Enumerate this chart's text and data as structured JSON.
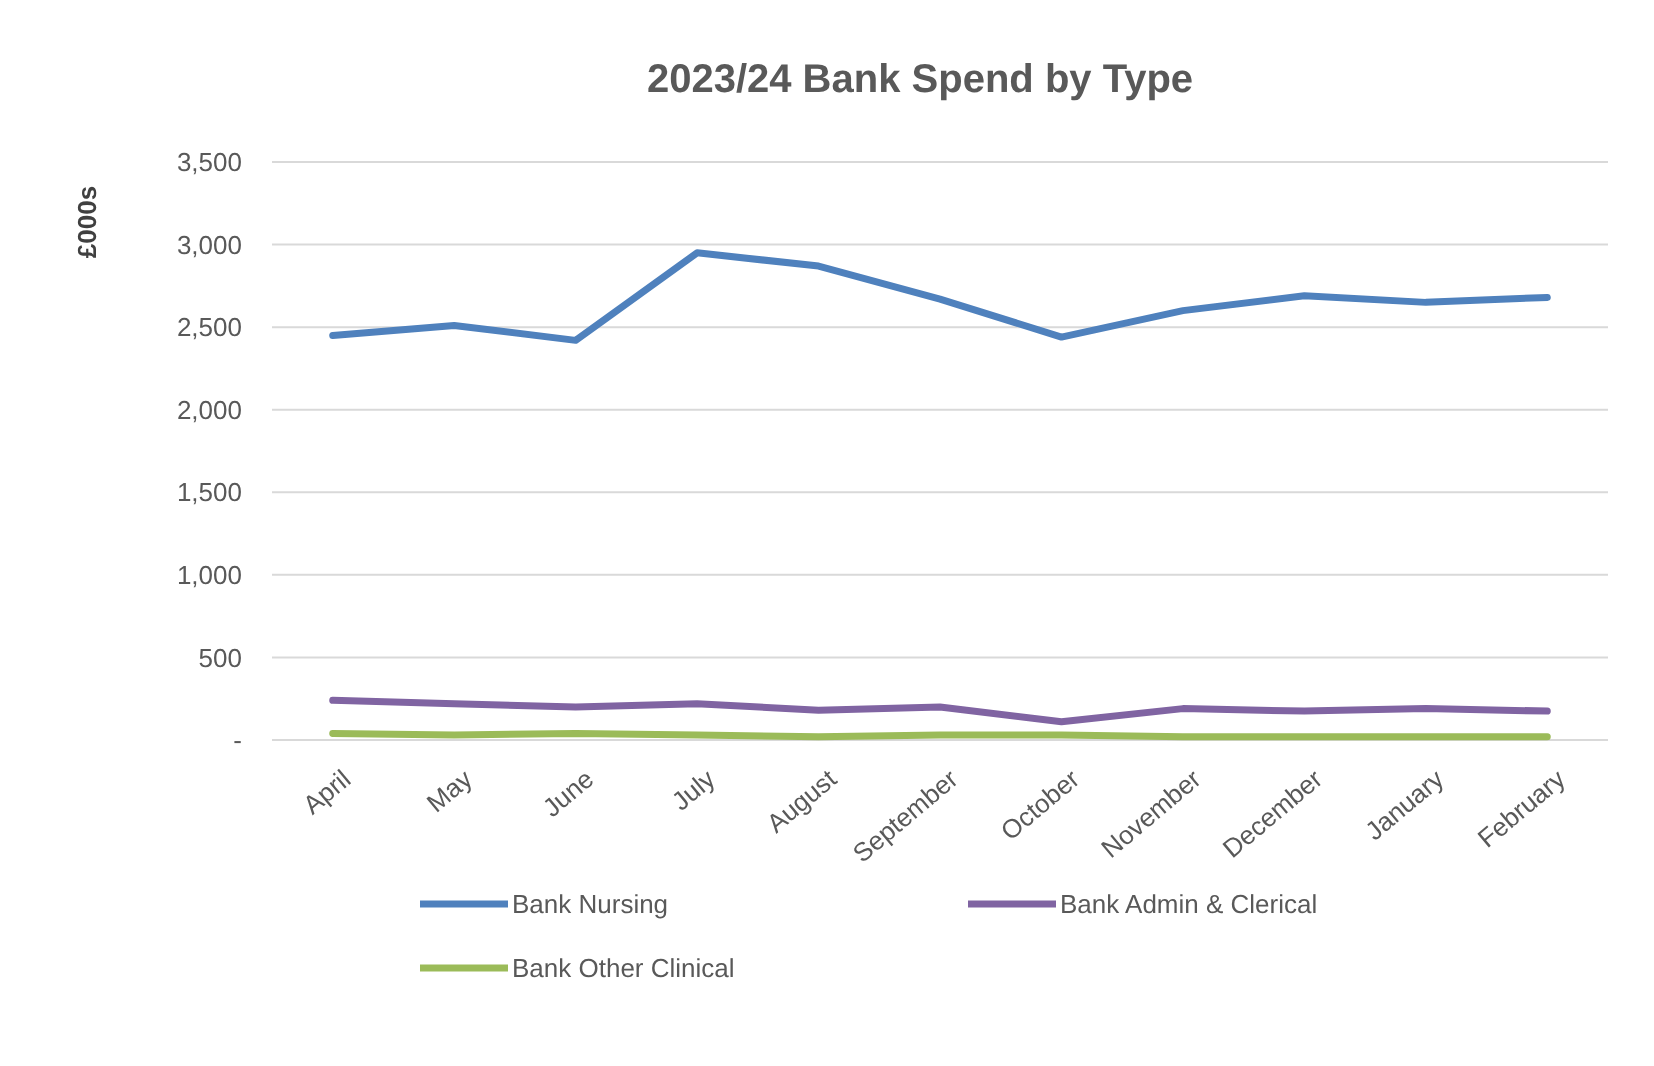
{
  "chart_data": {
    "type": "line",
    "title": "2023/24 Bank Spend by Type",
    "ylabel": "£000s",
    "categories": [
      "April",
      "May",
      "June",
      "July",
      "August",
      "September",
      "October",
      "November",
      "December",
      "January",
      "February"
    ],
    "series": [
      {
        "name": "Bank Nursing",
        "color": "#4f81bd",
        "values": [
          2450,
          2510,
          2420,
          2950,
          2870,
          2670,
          2440,
          2600,
          2690,
          2650,
          2680
        ]
      },
      {
        "name": "Bank Admin & Clerical",
        "color": "#8064a2",
        "values": [
          240,
          220,
          200,
          220,
          180,
          200,
          110,
          190,
          175,
          190,
          175
        ]
      },
      {
        "name": "Bank Other Clinical",
        "color": "#9bbb59",
        "values": [
          40,
          30,
          40,
          30,
          20,
          30,
          30,
          20,
          20,
          20,
          20
        ]
      }
    ],
    "ylim": [
      0,
      3500
    ],
    "yticks": [
      {
        "value": 0,
        "label": "-"
      },
      {
        "value": 500,
        "label": "500"
      },
      {
        "value": 1000,
        "label": "1,000"
      },
      {
        "value": 1500,
        "label": "1,500"
      },
      {
        "value": 2000,
        "label": "2,000"
      },
      {
        "value": 2500,
        "label": "2,500"
      },
      {
        "value": 3000,
        "label": "3,000"
      },
      {
        "value": 3500,
        "label": "3,500"
      }
    ],
    "grid": "y",
    "legend": "bottom",
    "marker": "none",
    "line_style": "solid"
  }
}
